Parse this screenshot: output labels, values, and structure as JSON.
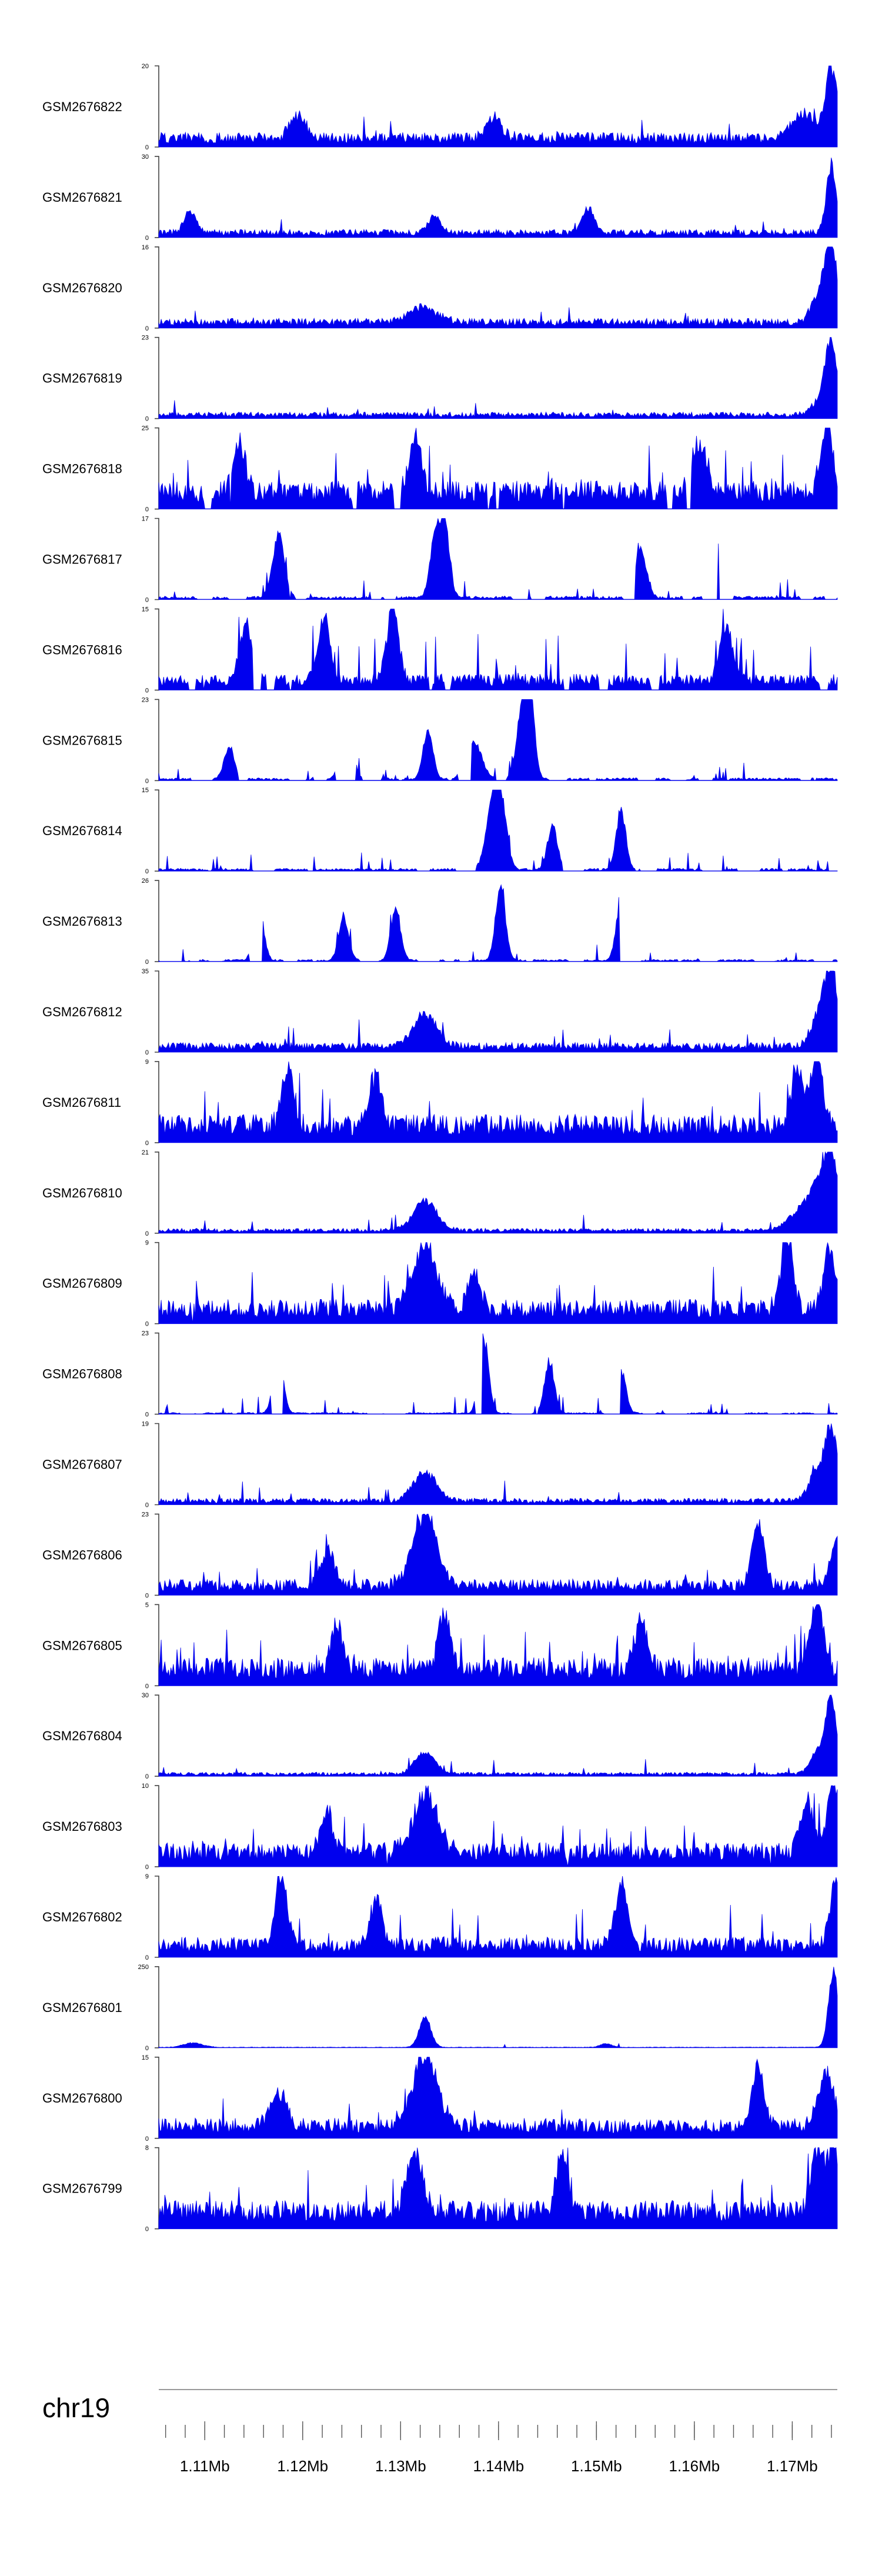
{
  "chart_data": {
    "type": "area",
    "title": "",
    "color": "#0000ee",
    "chromosome": "chr19",
    "xlim_mb": [
      1.1053,
      1.1746
    ],
    "x_ticks": [
      {
        "value": 1.11,
        "label": "1.11Mb"
      },
      {
        "value": 1.12,
        "label": "1.12Mb"
      },
      {
        "value": 1.13,
        "label": "1.13Mb"
      },
      {
        "value": 1.14,
        "label": "1.14Mb"
      },
      {
        "value": 1.15,
        "label": "1.15Mb"
      },
      {
        "value": 1.16,
        "label": "1.16Mb"
      },
      {
        "value": 1.17,
        "label": "1.17Mb"
      }
    ],
    "minor_tick_step_mb": 0.002,
    "tracks": [
      {
        "name": "GSM2676822",
        "ymin": 0,
        "ymax": 20,
        "seed": 11,
        "base": 0.18,
        "spikiness": 0.35,
        "sparse": 0,
        "peaks": [
          [
            1.174,
            1.0,
            0.0006
          ],
          [
            1.1712,
            0.35,
            0.0012
          ],
          [
            1.1195,
            0.3,
            0.0008
          ],
          [
            1.1395,
            0.28,
            0.0008
          ]
        ]
      },
      {
        "name": "GSM2676821",
        "ymin": 0,
        "ymax": 30,
        "seed": 12,
        "base": 0.1,
        "spikiness": 0.3,
        "sparse": 0,
        "peaks": [
          [
            1.174,
            0.95,
            0.0005
          ],
          [
            1.1492,
            0.35,
            0.0006
          ],
          [
            1.1085,
            0.3,
            0.0006
          ],
          [
            1.1335,
            0.25,
            0.0006
          ]
        ]
      },
      {
        "name": "GSM2676820",
        "ymin": 0,
        "ymax": 16,
        "seed": 13,
        "base": 0.12,
        "spikiness": 0.3,
        "sparse": 0,
        "peaks": [
          [
            1.174,
            1.0,
            0.0006
          ],
          [
            1.1728,
            0.4,
            0.0008
          ],
          [
            1.1322,
            0.2,
            0.0015
          ]
        ]
      },
      {
        "name": "GSM2676819",
        "ymin": 0,
        "ymax": 23,
        "seed": 14,
        "base": 0.08,
        "spikiness": 0.3,
        "sparse": 0,
        "peaks": [
          [
            1.174,
            1.0,
            0.0006
          ],
          [
            1.1728,
            0.2,
            0.0008
          ]
        ]
      },
      {
        "name": "GSM2676818",
        "ymin": 0,
        "ymax": 25,
        "seed": 15,
        "base": 0.35,
        "spikiness": 0.9,
        "sparse": 0.25,
        "peaks": [
          [
            1.1735,
            0.95,
            0.0006
          ],
          [
            1.1135,
            0.75,
            0.0006
          ],
          [
            1.1315,
            0.8,
            0.0006
          ],
          [
            1.1605,
            0.65,
            0.0008
          ]
        ]
      },
      {
        "name": "GSM2676817",
        "ymin": 0,
        "ymax": 17,
        "seed": 16,
        "base": 0.12,
        "spikiness": 1.0,
        "sparse": 0.55,
        "peaks": [
          [
            1.1345,
            1.0,
            0.0005
          ],
          [
            1.1175,
            0.85,
            0.0006
          ],
          [
            1.1335,
            0.8,
            0.0005
          ],
          [
            1.1625,
            0.7,
            0.0006
          ],
          [
            1.1545,
            0.65,
            0.0006
          ]
        ]
      },
      {
        "name": "GSM2676816",
        "ymin": 0,
        "ymax": 15,
        "seed": 17,
        "base": 0.2,
        "spikiness": 0.95,
        "sparse": 0.35,
        "peaks": [
          [
            1.1292,
            1.0,
            0.0006
          ],
          [
            1.1222,
            0.85,
            0.0006
          ],
          [
            1.1142,
            0.8,
            0.0006
          ],
          [
            1.1632,
            0.75,
            0.0006
          ]
        ]
      },
      {
        "name": "GSM2676815",
        "ymin": 0,
        "ymax": 23,
        "seed": 18,
        "base": 0.1,
        "spikiness": 1.0,
        "sparse": 0.7,
        "peaks": [
          [
            1.1425,
            1.0,
            0.0006
          ],
          [
            1.1432,
            0.9,
            0.0005
          ],
          [
            1.1375,
            0.5,
            0.0008
          ],
          [
            1.1245,
            0.7,
            0.0006
          ],
          [
            1.1328,
            0.7,
            0.0005
          ],
          [
            1.1125,
            0.45,
            0.0005
          ]
        ]
      },
      {
        "name": "GSM2676814",
        "ymin": 0,
        "ymax": 15,
        "seed": 19,
        "base": 0.1,
        "spikiness": 1.0,
        "sparse": 0.7,
        "peaks": [
          [
            1.1402,
            1.0,
            0.0006
          ],
          [
            1.1392,
            0.7,
            0.0006
          ],
          [
            1.1525,
            0.8,
            0.0005
          ],
          [
            1.1455,
            0.6,
            0.0005
          ]
        ]
      },
      {
        "name": "GSM2676813",
        "ymin": 0,
        "ymax": 26,
        "seed": 20,
        "base": 0.08,
        "spikiness": 1.0,
        "sparse": 0.75,
        "peaks": [
          [
            1.1402,
            1.0,
            0.0005
          ],
          [
            1.1525,
            0.75,
            0.0005
          ],
          [
            1.1155,
            0.75,
            0.0005
          ],
          [
            1.1295,
            0.7,
            0.0005
          ],
          [
            1.1242,
            0.6,
            0.0005
          ]
        ]
      },
      {
        "name": "GSM2676812",
        "ymin": 0,
        "ymax": 35,
        "seed": 21,
        "base": 0.12,
        "spikiness": 0.5,
        "sparse": 0,
        "peaks": [
          [
            1.174,
            1.0,
            0.0006
          ],
          [
            1.1325,
            0.45,
            0.0012
          ],
          [
            1.1728,
            0.5,
            0.0008
          ]
        ]
      },
      {
        "name": "GSM2676811",
        "ymin": 0,
        "ymax": 9,
        "seed": 22,
        "base": 0.35,
        "spikiness": 0.8,
        "sparse": 0.05,
        "peaks": [
          [
            1.1725,
            0.97,
            0.0006
          ],
          [
            1.1185,
            0.8,
            0.0006
          ],
          [
            1.1275,
            0.7,
            0.0006
          ],
          [
            1.1705,
            0.75,
            0.0006
          ]
        ]
      },
      {
        "name": "GSM2676810",
        "ymin": 0,
        "ymax": 21,
        "seed": 23,
        "base": 0.06,
        "spikiness": 0.35,
        "sparse": 0,
        "peaks": [
          [
            1.174,
            1.0,
            0.0006
          ],
          [
            1.1325,
            0.4,
            0.0012
          ],
          [
            1.1715,
            0.35,
            0.0015
          ],
          [
            1.1728,
            0.4,
            0.0008
          ]
        ]
      },
      {
        "name": "GSM2676809",
        "ymin": 0,
        "ymax": 9,
        "seed": 24,
        "base": 0.3,
        "spikiness": 0.7,
        "sparse": 0.05,
        "peaks": [
          [
            1.1325,
            0.85,
            0.0012
          ],
          [
            1.1695,
            0.95,
            0.0006
          ],
          [
            1.1738,
            0.85,
            0.0006
          ],
          [
            1.1375,
            0.55,
            0.0006
          ]
        ]
      },
      {
        "name": "GSM2676808",
        "ymin": 0,
        "ymax": 23,
        "seed": 25,
        "base": 0.06,
        "spikiness": 1.0,
        "sparse": 0.75,
        "peaks": [
          [
            1.1385,
            1.0,
            0.0005
          ],
          [
            1.1175,
            0.85,
            0.0005
          ],
          [
            1.1452,
            0.7,
            0.0005
          ],
          [
            1.1525,
            0.6,
            0.0005
          ]
        ]
      },
      {
        "name": "GSM2676807",
        "ymin": 0,
        "ymax": 19,
        "seed": 26,
        "base": 0.08,
        "spikiness": 0.4,
        "sparse": 0,
        "peaks": [
          [
            1.174,
            1.0,
            0.0006
          ],
          [
            1.1325,
            0.38,
            0.0012
          ],
          [
            1.1725,
            0.4,
            0.0008
          ]
        ]
      },
      {
        "name": "GSM2676806",
        "ymin": 0,
        "ymax": 23,
        "seed": 27,
        "base": 0.2,
        "spikiness": 0.5,
        "sparse": 0,
        "peaks": [
          [
            1.1325,
            0.98,
            0.0012
          ],
          [
            1.1665,
            0.85,
            0.0006
          ],
          [
            1.1745,
            0.6,
            0.0006
          ],
          [
            1.1225,
            0.45,
            0.0008
          ]
        ]
      },
      {
        "name": "GSM2676805",
        "ymin": 0,
        "ymax": 5,
        "seed": 28,
        "base": 0.35,
        "spikiness": 0.8,
        "sparse": 0.05,
        "peaks": [
          [
            1.1725,
            0.98,
            0.0006
          ],
          [
            1.1345,
            0.8,
            0.0006
          ],
          [
            1.1545,
            0.7,
            0.0006
          ],
          [
            1.1235,
            0.6,
            0.0006
          ]
        ]
      },
      {
        "name": "GSM2676804",
        "ymin": 0,
        "ymax": 30,
        "seed": 29,
        "base": 0.05,
        "spikiness": 0.3,
        "sparse": 0,
        "peaks": [
          [
            1.174,
            1.0,
            0.0005
          ],
          [
            1.1325,
            0.3,
            0.001
          ],
          [
            1.1728,
            0.35,
            0.0008
          ]
        ]
      },
      {
        "name": "GSM2676803",
        "ymin": 0,
        "ymax": 10,
        "seed": 30,
        "base": 0.3,
        "spikiness": 0.7,
        "sparse": 0.05,
        "peaks": [
          [
            1.1742,
            0.95,
            0.0006
          ],
          [
            1.1325,
            0.8,
            0.0012
          ],
          [
            1.1715,
            0.75,
            0.0006
          ],
          [
            1.1225,
            0.55,
            0.0006
          ]
        ]
      },
      {
        "name": "GSM2676802",
        "ymin": 0,
        "ymax": 9,
        "seed": 31,
        "base": 0.25,
        "spikiness": 0.75,
        "sparse": 0.05,
        "peaks": [
          [
            1.1745,
            0.95,
            0.0006
          ],
          [
            1.1178,
            0.95,
            0.0006
          ],
          [
            1.1525,
            0.85,
            0.0006
          ],
          [
            1.1275,
            0.6,
            0.0006
          ]
        ]
      },
      {
        "name": "GSM2676801",
        "ymin": 0,
        "ymax": 250,
        "seed": 32,
        "base": 0.01,
        "spikiness": 0.1,
        "sparse": 0,
        "peaks": [
          [
            1.1742,
            1.0,
            0.0005
          ],
          [
            1.1325,
            0.4,
            0.0006
          ],
          [
            1.1088,
            0.06,
            0.001
          ],
          [
            1.151,
            0.05,
            0.0006
          ]
        ]
      },
      {
        "name": "GSM2676800",
        "ymin": 0,
        "ymax": 15,
        "seed": 33,
        "base": 0.25,
        "spikiness": 0.5,
        "sparse": 0,
        "peaks": [
          [
            1.1325,
            0.98,
            0.0012
          ],
          [
            1.1665,
            0.85,
            0.0006
          ],
          [
            1.1735,
            0.7,
            0.0008
          ],
          [
            1.1175,
            0.45,
            0.0008
          ]
        ]
      },
      {
        "name": "GSM2676799",
        "ymin": 0,
        "ymax": 8,
        "seed": 34,
        "base": 0.35,
        "spikiness": 0.75,
        "sparse": 0.02,
        "peaks": [
          [
            1.1742,
            0.98,
            0.0006
          ],
          [
            1.1725,
            0.9,
            0.0006
          ],
          [
            1.1315,
            0.8,
            0.0008
          ],
          [
            1.1465,
            0.75,
            0.0006
          ]
        ]
      }
    ]
  }
}
